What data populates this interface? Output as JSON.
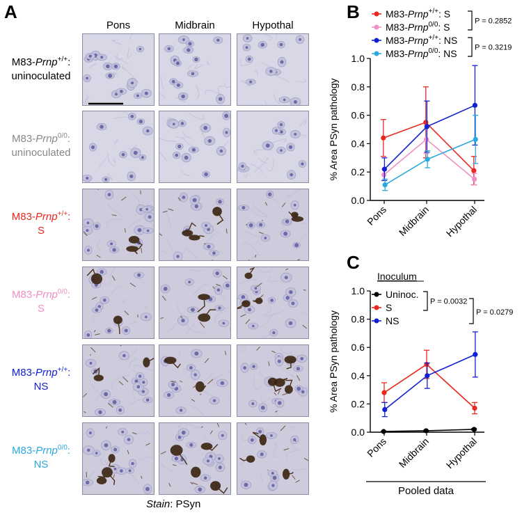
{
  "panel_letters": {
    "a": "A",
    "b": "B",
    "c": "C"
  },
  "micrograph": {
    "columns": [
      "Pons",
      "Midbrain",
      "Hypothal"
    ],
    "rows": [
      {
        "line1": "M83-",
        "gene": "Prnp",
        "sup": "+/+",
        "colon": ":",
        "line2": "uninoculated",
        "color": "#000000",
        "stained": false
      },
      {
        "line1": "M83-",
        "gene": "Prnp",
        "sup": "0/0",
        "colon": ":",
        "line2": "uninoculated",
        "color": "#888888",
        "stained": false
      },
      {
        "line1": "M83-",
        "gene": "Prnp",
        "sup": "+/+",
        "colon": ":",
        "line2": "S",
        "color": "#e8281e",
        "stained": true
      },
      {
        "line1": "M83-",
        "gene": "Prnp",
        "sup": "0/0",
        "colon": ":",
        "line2": "S",
        "color": "#ee8fc6",
        "stained": true
      },
      {
        "line1": "M83-",
        "gene": "Prnp",
        "sup": "+/+",
        "colon": ":",
        "line2": "NS",
        "color": "#1020d0",
        "stained": true
      },
      {
        "line1": "M83-",
        "gene": "Prnp",
        "sup": "0/0",
        "colon": ":",
        "line2": "NS",
        "color": "#2aa8e0",
        "stained": true
      }
    ],
    "stain_label": "Stain",
    "stain_value": ": PSyn"
  },
  "chart_data": [
    {
      "type": "line",
      "panel": "B",
      "categories": [
        "Pons",
        "Midbrain",
        "Hypothal"
      ],
      "ylabel": "% Area PSyn pathology",
      "ylim": [
        0,
        1.0
      ],
      "yticks": [
        "0.0",
        "0.2",
        "0.4",
        "0.6",
        "0.8",
        "1.0"
      ],
      "series": [
        {
          "prefix": "M83-",
          "gene": "Prnp",
          "sup": "+/+",
          "suffix": ": S",
          "color": "#e8281e",
          "values": [
            0.44,
            0.55,
            0.21
          ],
          "err": [
            0.13,
            0.25,
            0.1
          ]
        },
        {
          "prefix": "M83-",
          "gene": "Prnp",
          "sup": "0/0",
          "suffix": ": S",
          "color": "#ee8fc6",
          "values": [
            0.18,
            0.43,
            0.15
          ],
          "err": [
            0.04,
            0.1,
            0.04
          ]
        },
        {
          "prefix": "M83-",
          "gene": "Prnp",
          "sup": "+/+",
          "suffix": ": NS",
          "color": "#1020d0",
          "values": [
            0.22,
            0.52,
            0.67
          ],
          "err": [
            0.08,
            0.18,
            0.28
          ]
        },
        {
          "prefix": "M83-",
          "gene": "Prnp",
          "sup": "0/0",
          "suffix": ": NS",
          "color": "#2aa8e0",
          "values": [
            0.11,
            0.29,
            0.43
          ],
          "err": [
            0.04,
            0.06,
            0.17
          ]
        }
      ],
      "pvalues": [
        "P = 0.2852",
        "P = 0.3219"
      ]
    },
    {
      "type": "line",
      "panel": "C",
      "categories": [
        "Pons",
        "Midbrain",
        "Hypothal"
      ],
      "ylabel": "% Area PSyn pathology",
      "ylim": [
        0,
        1.0
      ],
      "yticks": [
        "0.0",
        "0.2",
        "0.4",
        "0.6",
        "0.8",
        "1.0"
      ],
      "legend_title": "Inoculum",
      "series": [
        {
          "name": "Uninoc.",
          "color": "#000000",
          "values": [
            0.005,
            0.01,
            0.02
          ],
          "err": [
            0.003,
            0.004,
            0.006
          ]
        },
        {
          "name": "S",
          "color": "#e8281e",
          "values": [
            0.28,
            0.48,
            0.17
          ],
          "err": [
            0.07,
            0.1,
            0.04
          ]
        },
        {
          "name": "NS",
          "color": "#1020d0",
          "values": [
            0.16,
            0.4,
            0.55
          ],
          "err": [
            0.05,
            0.09,
            0.16
          ]
        }
      ],
      "pvalues": [
        "P = 0.0032",
        "P = 0.0279"
      ],
      "xlabel": "Pooled data"
    }
  ]
}
